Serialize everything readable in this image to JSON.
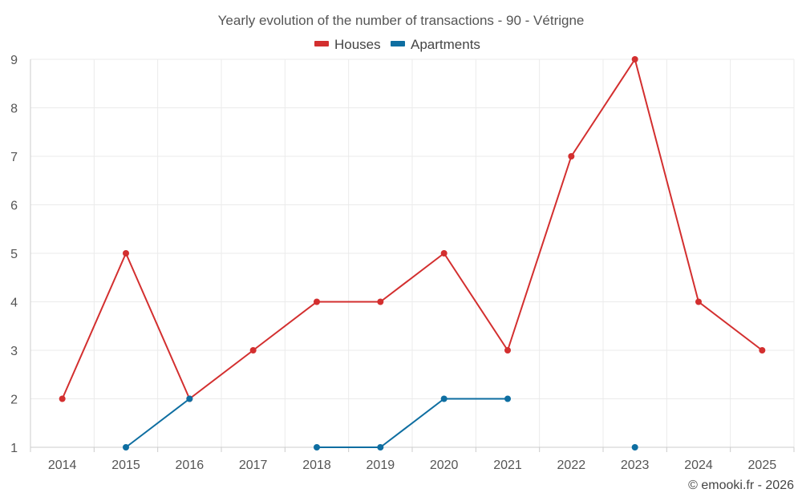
{
  "chart_data": {
    "type": "line",
    "title": "Yearly evolution of the number of transactions - 90 - Vétrigne",
    "xlabel": "",
    "ylabel": "",
    "categories": [
      "2014",
      "2015",
      "2016",
      "2017",
      "2018",
      "2019",
      "2020",
      "2021",
      "2022",
      "2023",
      "2024",
      "2025"
    ],
    "ylim": [
      1,
      9
    ],
    "yticks": [
      1,
      2,
      3,
      4,
      5,
      6,
      7,
      8,
      9
    ],
    "grid": true,
    "legend_position": "top-center",
    "series": [
      {
        "name": "Houses",
        "color": "#d32f2f",
        "values": [
          2,
          5,
          2,
          3,
          4,
          4,
          5,
          3,
          7,
          9,
          4,
          3
        ]
      },
      {
        "name": "Apartments",
        "color": "#0e6ea1",
        "values": [
          null,
          1,
          2,
          null,
          1,
          1,
          2,
          2,
          null,
          1,
          null,
          null
        ]
      }
    ]
  },
  "credit": "© emooki.fr - 2026"
}
